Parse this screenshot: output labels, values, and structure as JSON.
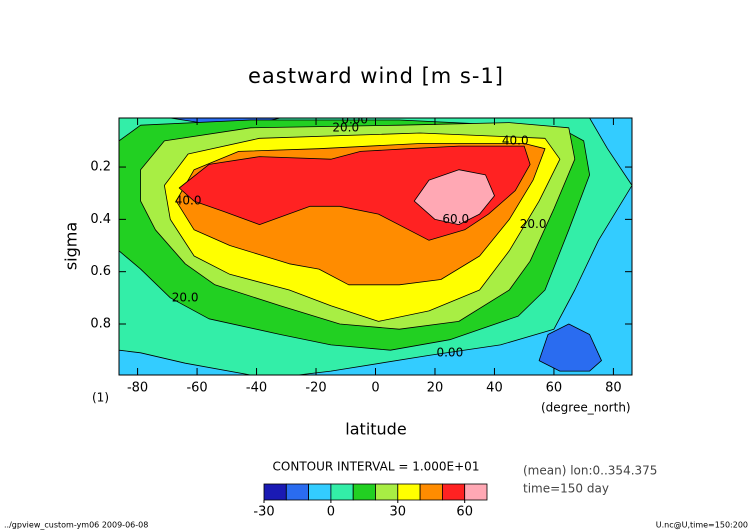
{
  "chart_data": {
    "type": "contour",
    "title": "eastward wind [m s-1]",
    "x_label": "latitude",
    "y_label": "sigma",
    "x_unit": "(degree_north)",
    "y_unit": "(1)",
    "contour_note": "CONTOUR INTERVAL = 1.000E+01",
    "info": [
      "(mean) lon:0..354.375",
      "time=150 day"
    ],
    "footer_left": "../gpview_custom-ym06  2009-06-08",
    "footer_right": "U.nc@U,time=150:200",
    "xlim": [
      -86.25,
      86.25
    ],
    "ylim": [
      0.995,
      0.0125
    ],
    "xticks": [
      -80,
      -60,
      -40,
      -20,
      0,
      20,
      40,
      60,
      80
    ],
    "yticks": [
      0.2,
      0.4,
      0.6,
      0.8
    ],
    "colorbar": {
      "levels": [
        -30,
        -20,
        -10,
        0,
        10,
        20,
        30,
        40,
        50,
        60,
        70
      ],
      "colors": [
        "#1a1ab4",
        "#2a6cf0",
        "#33ccff",
        "#33eea8",
        "#22d022",
        "#a8ee44",
        "#ffff00",
        "#ff8c00",
        "#ff2222",
        "#ffa8b4"
      ],
      "ticks": [
        -30,
        0,
        30,
        60
      ]
    },
    "regions": [
      {
        "level": -10,
        "points": [
          [
            -86.25,
            0.0125
          ],
          [
            86.25,
            0.0125
          ],
          [
            86.25,
            0.995
          ],
          [
            -86.25,
            0.995
          ]
        ]
      },
      {
        "level": 0,
        "points": [
          [
            -86.25,
            0.0125
          ],
          [
            72,
            0.0125
          ],
          [
            78,
            0.13
          ],
          [
            86.25,
            0.27
          ],
          [
            75,
            0.48
          ],
          [
            67,
            0.67
          ],
          [
            60,
            0.82
          ],
          [
            42,
            0.88
          ],
          [
            18,
            0.92
          ],
          [
            -15,
            0.98
          ],
          [
            -26,
            0.995
          ],
          [
            -42,
            0.995
          ],
          [
            -64,
            0.95
          ],
          [
            -79,
            0.91
          ],
          [
            -86.25,
            0.9
          ]
        ]
      },
      {
        "level": -20,
        "points": [
          [
            -69,
            0.0125
          ],
          [
            -32,
            0.0125
          ],
          [
            -39,
            0.03
          ],
          [
            -59,
            0.03
          ]
        ]
      },
      {
        "level": -20,
        "points": [
          [
            55,
            0.94
          ],
          [
            58,
            0.84
          ],
          [
            65,
            0.8
          ],
          [
            72,
            0.84
          ],
          [
            76,
            0.94
          ],
          [
            72,
            0.98
          ],
          [
            62,
            0.98
          ]
        ]
      },
      {
        "level": 10,
        "points": [
          [
            -86.25,
            0.1
          ],
          [
            -79,
            0.04
          ],
          [
            -42,
            0.02
          ],
          [
            8,
            0.02
          ],
          [
            62,
            0.05
          ],
          [
            70,
            0.1
          ],
          [
            72,
            0.23
          ],
          [
            65,
            0.44
          ],
          [
            57,
            0.67
          ],
          [
            48,
            0.77
          ],
          [
            25,
            0.86
          ],
          [
            5,
            0.9
          ],
          [
            -15,
            0.88
          ],
          [
            -32,
            0.84
          ],
          [
            -56,
            0.78
          ],
          [
            -69,
            0.7
          ],
          [
            -79,
            0.59
          ],
          [
            -86.25,
            0.52
          ]
        ]
      },
      {
        "level": 20,
        "points": [
          [
            -79,
            0.21
          ],
          [
            -71,
            0.1
          ],
          [
            -42,
            0.05
          ],
          [
            8,
            0.04
          ],
          [
            45,
            0.03
          ],
          [
            65,
            0.05
          ],
          [
            67,
            0.17
          ],
          [
            60,
            0.36
          ],
          [
            52,
            0.56
          ],
          [
            45,
            0.67
          ],
          [
            28,
            0.79
          ],
          [
            8,
            0.82
          ],
          [
            -12,
            0.8
          ],
          [
            -32,
            0.73
          ],
          [
            -54,
            0.65
          ],
          [
            -64,
            0.57
          ],
          [
            -74,
            0.44
          ],
          [
            -79,
            0.33
          ]
        ]
      },
      {
        "level": 30,
        "points": [
          [
            -71,
            0.27
          ],
          [
            -63,
            0.15
          ],
          [
            -39,
            0.09
          ],
          [
            15,
            0.07
          ],
          [
            57,
            0.09
          ],
          [
            62,
            0.17
          ],
          [
            55,
            0.33
          ],
          [
            45,
            0.52
          ],
          [
            35,
            0.67
          ],
          [
            18,
            0.75
          ],
          [
            1,
            0.79
          ],
          [
            -15,
            0.73
          ],
          [
            -29,
            0.67
          ],
          [
            -49,
            0.61
          ],
          [
            -61,
            0.54
          ],
          [
            -69,
            0.4
          ]
        ]
      },
      {
        "level": 40,
        "points": [
          [
            -67,
            0.33
          ],
          [
            -61,
            0.21
          ],
          [
            -46,
            0.14
          ],
          [
            -19,
            0.13
          ],
          [
            15,
            0.11
          ],
          [
            50,
            0.11
          ],
          [
            57,
            0.13
          ],
          [
            53,
            0.25
          ],
          [
            45,
            0.4
          ],
          [
            35,
            0.54
          ],
          [
            22,
            0.63
          ],
          [
            8,
            0.65
          ],
          [
            -9,
            0.65
          ],
          [
            -19,
            0.59
          ],
          [
            -29,
            0.57
          ],
          [
            -49,
            0.5
          ],
          [
            -61,
            0.44
          ]
        ]
      },
      {
        "level": 50,
        "points": [
          [
            -66,
            0.28
          ],
          [
            -56,
            0.19
          ],
          [
            -39,
            0.16
          ],
          [
            -15,
            0.17
          ],
          [
            -5,
            0.14
          ],
          [
            11,
            0.13
          ],
          [
            28,
            0.12
          ],
          [
            50,
            0.12
          ],
          [
            52,
            0.19
          ],
          [
            47,
            0.29
          ],
          [
            38,
            0.38
          ],
          [
            30,
            0.44
          ],
          [
            18,
            0.48
          ],
          [
            1,
            0.38
          ],
          [
            -12,
            0.35
          ],
          [
            -22,
            0.35
          ],
          [
            -39,
            0.42
          ],
          [
            -51,
            0.37
          ],
          [
            -61,
            0.33
          ]
        ]
      },
      {
        "level": 60,
        "points": [
          [
            13,
            0.33
          ],
          [
            18,
            0.25
          ],
          [
            28,
            0.21
          ],
          [
            37,
            0.23
          ],
          [
            40,
            0.31
          ],
          [
            35,
            0.38
          ],
          [
            28,
            0.42
          ],
          [
            20,
            0.4
          ]
        ]
      }
    ],
    "contour_labels": [
      {
        "value": 0,
        "label": "0.00",
        "lat": -7,
        "sigma": 0.02
      },
      {
        "value": 20,
        "label": "20.0",
        "lat": -10,
        "sigma": 0.05
      },
      {
        "value": 40,
        "label": "40.0",
        "lat": 47,
        "sigma": 0.1
      },
      {
        "value": 40,
        "label": "40.0",
        "lat": -63,
        "sigma": 0.33
      },
      {
        "value": 20,
        "label": "20.0",
        "lat": -64,
        "sigma": 0.7
      },
      {
        "value": 20,
        "label": "20.0",
        "lat": 53,
        "sigma": 0.42
      },
      {
        "value": 60,
        "label": "60.0",
        "lat": 27,
        "sigma": 0.4
      },
      {
        "value": 0,
        "label": "0.00",
        "lat": 25,
        "sigma": 0.91
      }
    ]
  }
}
